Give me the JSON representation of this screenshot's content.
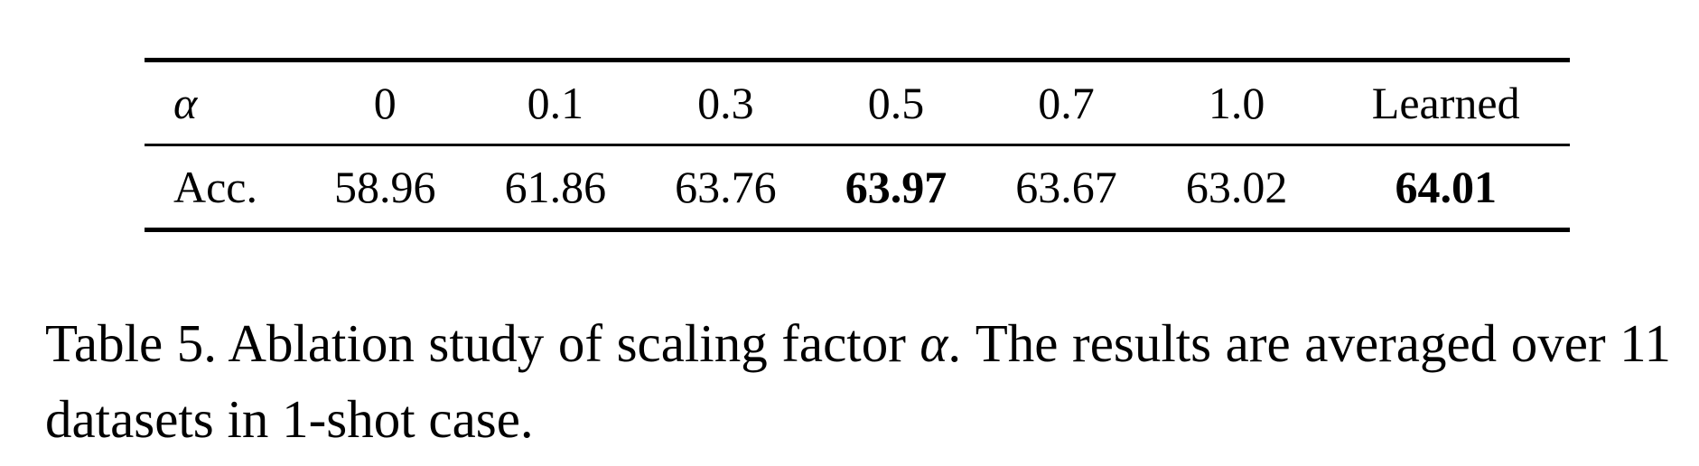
{
  "table": {
    "header_label": "α",
    "columns": [
      "0",
      "0.1",
      "0.3",
      "0.5",
      "0.7",
      "1.0",
      "Learned"
    ],
    "row_label": "Acc.",
    "values": [
      "58.96",
      "61.86",
      "63.76",
      "63.97",
      "63.67",
      "63.02",
      "64.01"
    ],
    "bold_columns": [
      3,
      6
    ]
  },
  "caption": {
    "prefix": "Table 5. Ablation study of scaling factor ",
    "symbol": "α",
    "suffix": ". The results are averaged over 11 datasets in 1-shot case."
  }
}
